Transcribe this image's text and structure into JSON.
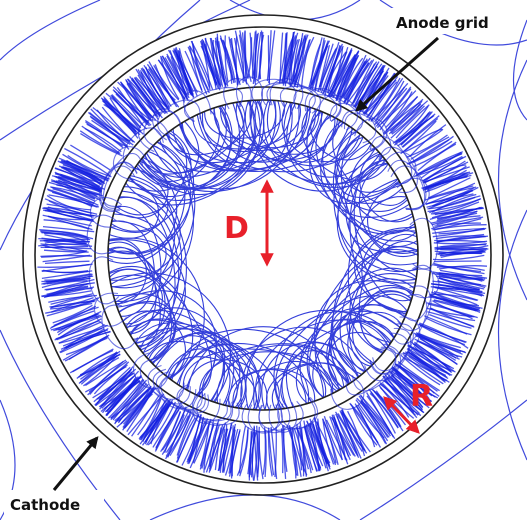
{
  "labels": {
    "anode": "Anode grid",
    "cathode": "Cathode",
    "d": "D",
    "r": "R"
  },
  "colors": {
    "trajectory": "#1f2bd6",
    "trajectory_dense": "#1420e0",
    "ring_stroke": "#222222",
    "arrow_red": "#e8202a",
    "arrow_black": "#111111",
    "background": "#ffffff"
  }
}
